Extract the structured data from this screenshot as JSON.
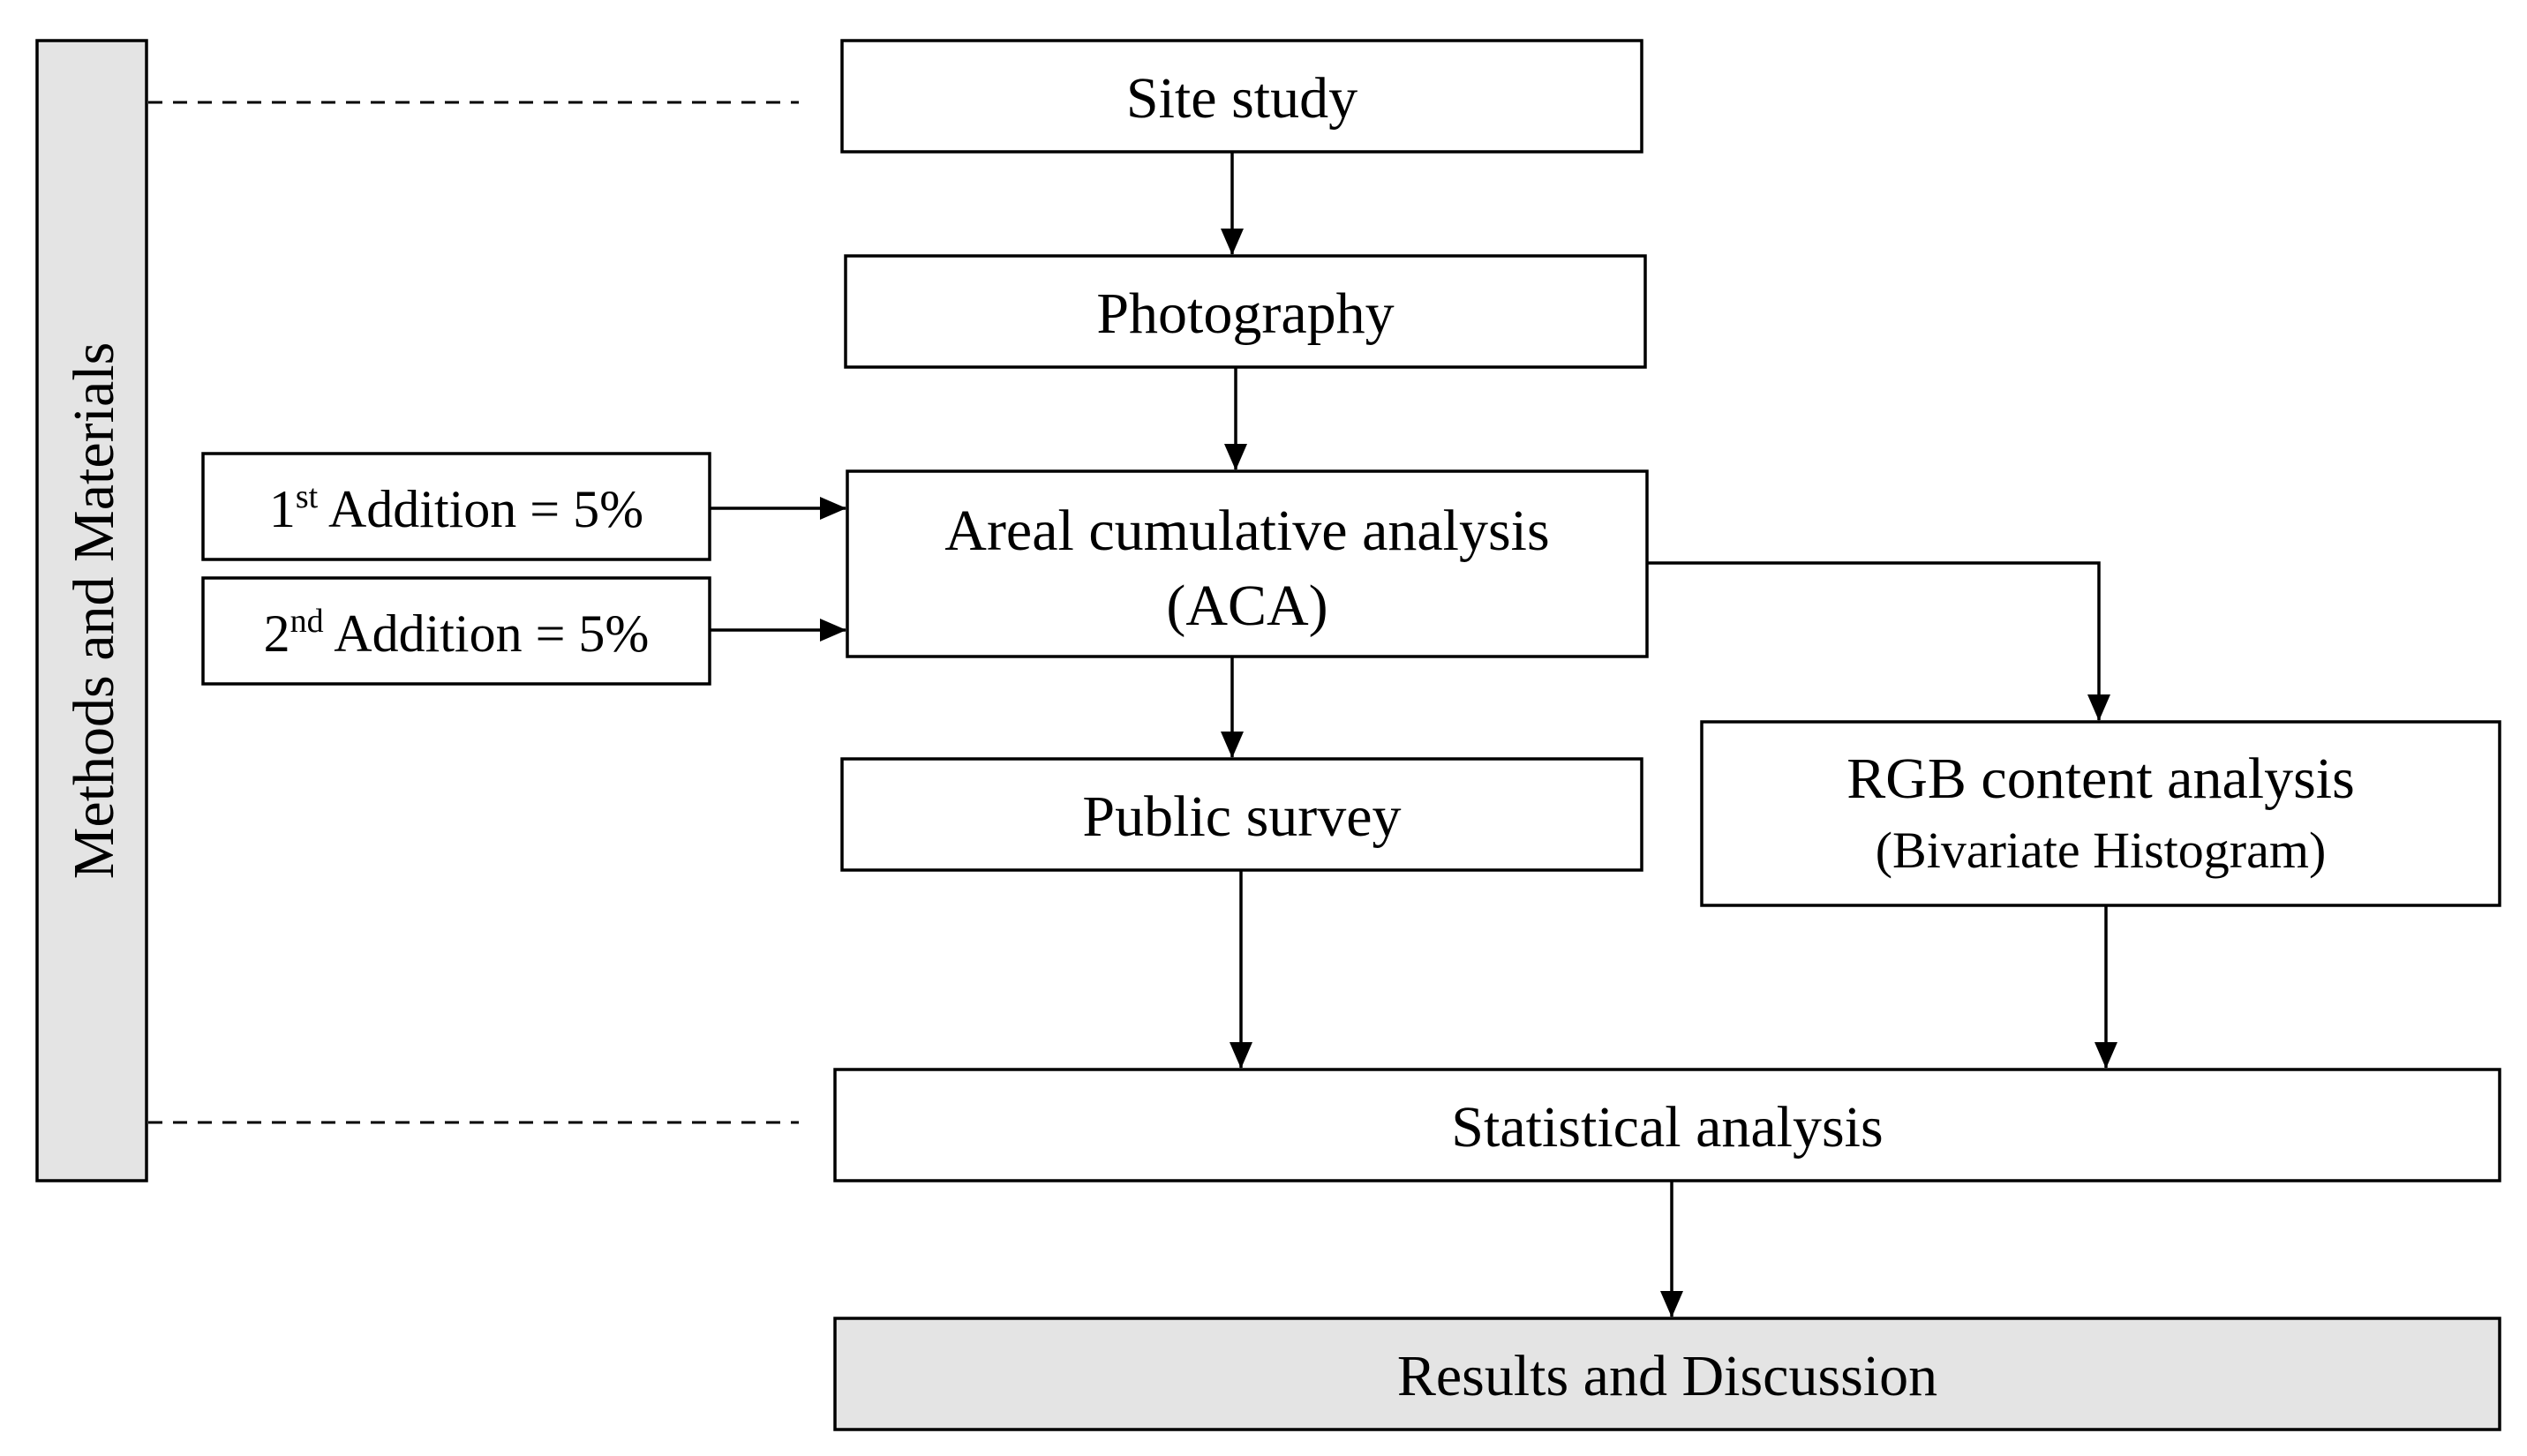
{
  "side_label": "Methods and Materials",
  "nodes": {
    "site_study": "Site study",
    "photography": "Photography",
    "aca_line1": "Areal cumulative analysis",
    "aca_line2": "(ACA)",
    "public_survey": "Public survey",
    "rgb_line1": "RGB content analysis",
    "rgb_line2": "(Bivariate Histogram)",
    "statistical_analysis": "Statistical analysis",
    "results": "Results and Discussion"
  },
  "additions": [
    {
      "num": "1",
      "sup": "st",
      "text": " Addition = 5%"
    },
    {
      "num": "2",
      "sup": "nd",
      "text": " Addition = 5%"
    }
  ]
}
